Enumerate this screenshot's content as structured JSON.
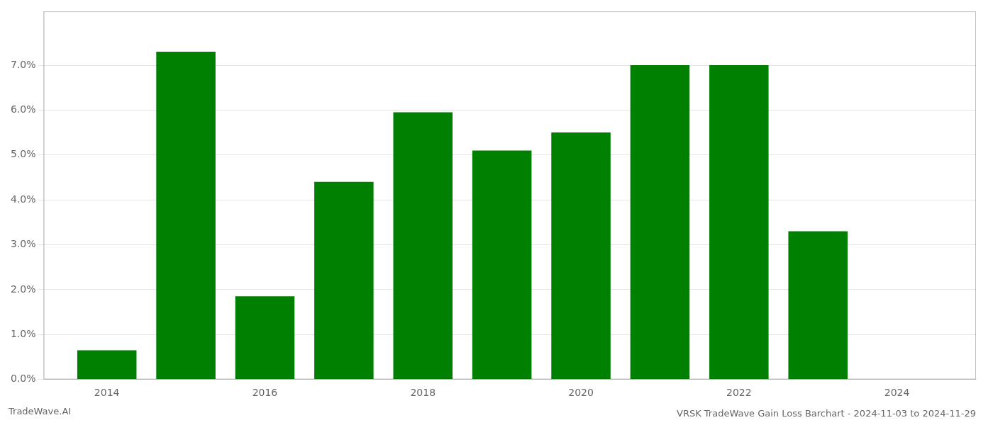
{
  "chart_data": {
    "type": "bar",
    "title": "VRSK TradeWave Gain Loss Barchart - 2024-11-03 to 2024-11-29",
    "annotations": [
      "TradeWave.AI"
    ],
    "x": [
      2014,
      2015,
      2016,
      2017,
      2018,
      2019,
      2020,
      2021,
      2022,
      2023
    ],
    "values": [
      0.0065,
      0.073,
      0.0185,
      0.044,
      0.0595,
      0.051,
      0.055,
      0.07,
      0.07,
      0.033
    ],
    "color": "#008000",
    "xlim": [
      2013.2,
      2025.0
    ],
    "xticks": [
      2014,
      2016,
      2018,
      2020,
      2022,
      2024
    ],
    "ylim": [
      0,
      0.082
    ],
    "yticks": [
      {
        "value": 0.0,
        "label": "0.0%"
      },
      {
        "value": 0.01,
        "label": "1.0%"
      },
      {
        "value": 0.02,
        "label": "2.0%"
      },
      {
        "value": 0.03,
        "label": "3.0%"
      },
      {
        "value": 0.04,
        "label": "4.0%"
      },
      {
        "value": 0.05,
        "label": "5.0%"
      },
      {
        "value": 0.06,
        "label": "6.0%"
      },
      {
        "value": 0.07,
        "label": "7.0%"
      }
    ],
    "grid": "y"
  }
}
